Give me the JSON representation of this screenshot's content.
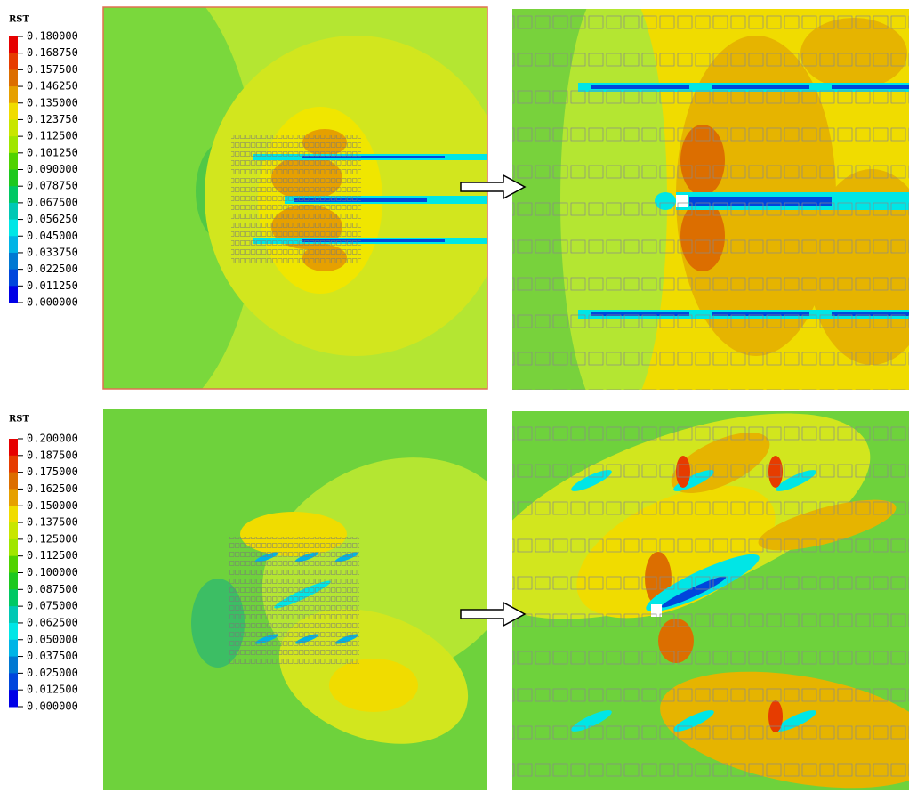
{
  "panels": [
    {
      "legend": {
        "title": "RST",
        "labels": [
          "0.180000",
          "0.168750",
          "0.157500",
          "0.146250",
          "0.135000",
          "0.123750",
          "0.112500",
          "0.101250",
          "0.090000",
          "0.078750",
          "0.067500",
          "0.056250",
          "0.045000",
          "0.033750",
          "0.022500",
          "0.011250",
          "0.000000"
        ]
      }
    },
    {
      "legend": {
        "title": "RST",
        "labels": [
          "0.200000",
          "0.187500",
          "0.175000",
          "0.162500",
          "0.150000",
          "0.137500",
          "0.125000",
          "0.112500",
          "0.100000",
          "0.087500",
          "0.075000",
          "0.062500",
          "0.050000",
          "0.037500",
          "0.025000",
          "0.012500",
          "0.000000"
        ]
      }
    }
  ]
}
